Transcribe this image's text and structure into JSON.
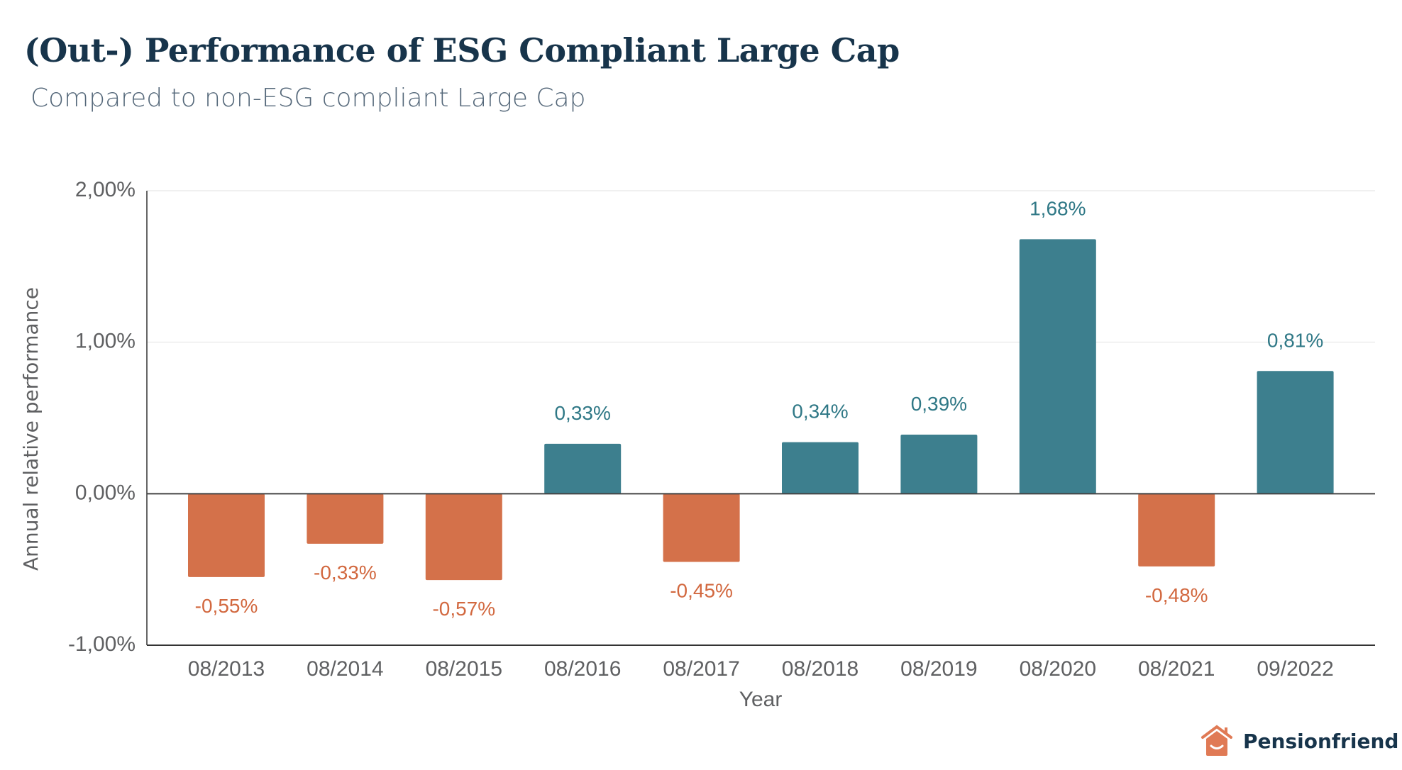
{
  "header": {
    "title": "(Out-) Performance of ESG Compliant Large Cap",
    "subtitle": "Compared to non-ESG compliant Large Cap"
  },
  "logo": {
    "text": "Pensionfriend",
    "icon": "house-smile-icon",
    "color": "#e07a55"
  },
  "chart_data": {
    "type": "bar",
    "categories": [
      "08/2013",
      "08/2014",
      "08/2015",
      "08/2016",
      "08/2017",
      "08/2018",
      "08/2019",
      "08/2020",
      "08/2021",
      "09/2022"
    ],
    "values": [
      -0.55,
      -0.33,
      -0.57,
      0.33,
      -0.45,
      0.34,
      0.39,
      1.68,
      -0.48,
      0.81
    ],
    "data_labels": [
      "-0,55%",
      "-0,33%",
      "-0,57%",
      "0,33%",
      "-0,45%",
      "0,34%",
      "0,39%",
      "1,68%",
      "-0,48%",
      "0,81%"
    ],
    "xlabel": "Year",
    "ylabel": "Annual relative performance",
    "ylim": [
      -1,
      2
    ],
    "yticks": [
      2,
      1,
      0,
      -1
    ],
    "ytick_labels": [
      "2,00%",
      "1,00%",
      "0,00%",
      "-1,00%"
    ],
    "grid": true,
    "colors": {
      "positive": "#3d7f8e",
      "negative": "#d4714a",
      "positive_label": "#2f7886",
      "negative_label": "#d2683f"
    }
  }
}
